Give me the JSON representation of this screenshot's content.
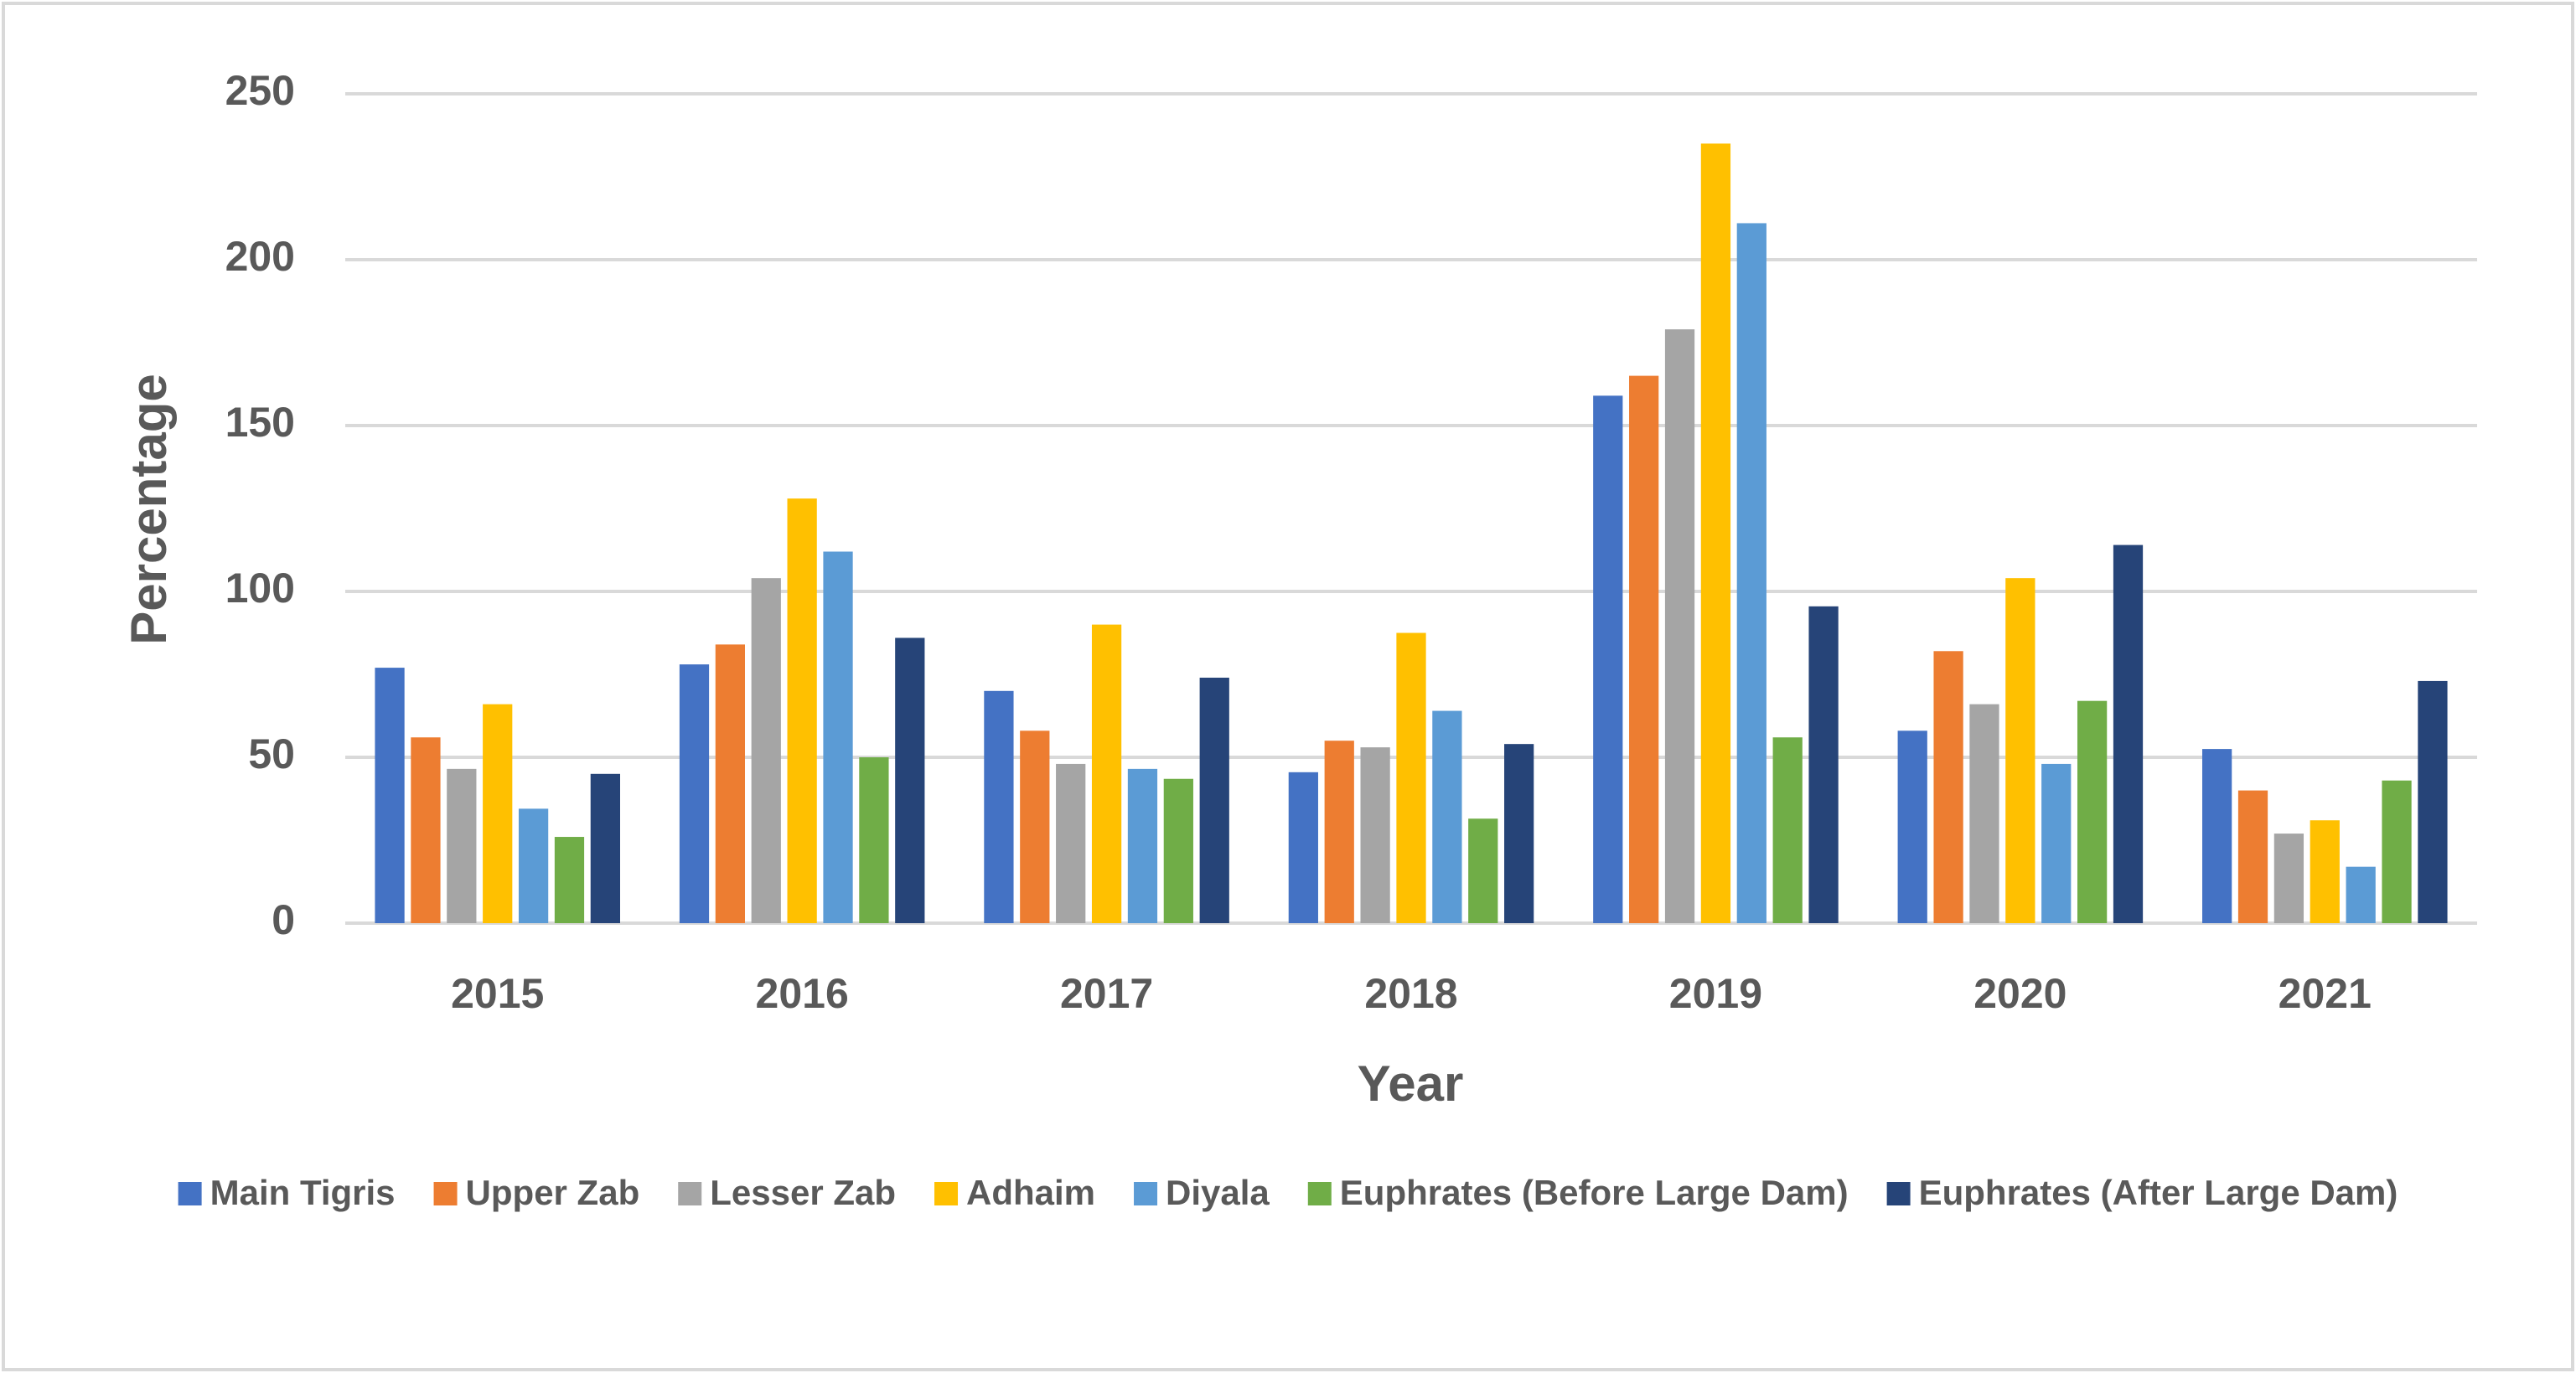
{
  "chart_data": {
    "type": "bar",
    "categories": [
      "2015",
      "2016",
      "2017",
      "2018",
      "2019",
      "2020",
      "2021"
    ],
    "x_label": "Year",
    "y_label": "Percentage",
    "ylim": [
      0,
      250
    ],
    "yticks": [
      0,
      50,
      100,
      150,
      200,
      250
    ],
    "grid": true,
    "legend": "bottom",
    "series": [
      {
        "name": "Main Tigris",
        "color": "#4472c4",
        "values": [
          77,
          78,
          70,
          45.5,
          159,
          58,
          52.5
        ]
      },
      {
        "name": "Upper Zab",
        "color": "#ed7d31",
        "values": [
          56,
          84,
          58,
          55,
          165,
          82,
          40
        ]
      },
      {
        "name": "Lesser Zab",
        "color": "#a5a5a5",
        "values": [
          46.5,
          104,
          48,
          53,
          179,
          66,
          27
        ]
      },
      {
        "name": "Adhaim",
        "color": "#ffc000",
        "values": [
          66,
          128,
          90,
          87.5,
          235,
          104,
          31
        ]
      },
      {
        "name": "Diyala",
        "color": "#5b9bd5",
        "values": [
          34.5,
          112,
          46.5,
          64,
          211,
          48,
          17
        ]
      },
      {
        "name": "Euphrates (Before Large Dam)",
        "color": "#70ad47",
        "values": [
          26,
          50,
          43.5,
          31.5,
          56,
          67,
          43
        ]
      },
      {
        "name": "Euphrates (After Large Dam)",
        "color": "#264478",
        "values": [
          45,
          86,
          74,
          54,
          95.5,
          114,
          73
        ]
      }
    ]
  }
}
